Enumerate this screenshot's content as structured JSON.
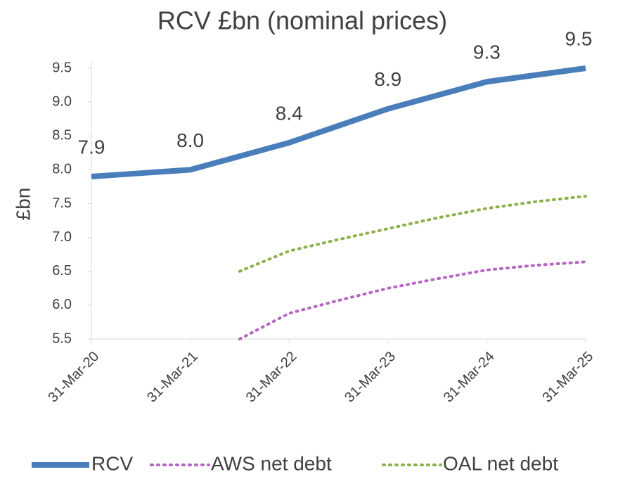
{
  "chart_data": {
    "type": "line",
    "title": "RCV £bn (nominal prices)",
    "y_label": "£bn",
    "categories": [
      "31-Mar-20",
      null,
      "31-Mar-21",
      null,
      "31-Mar-22",
      null,
      "31-Mar-23",
      null,
      "31-Mar-24",
      null,
      "31-Mar-25"
    ],
    "series": [
      {
        "name": "RCV",
        "color": "#4a7ebb",
        "style": "solid",
        "values": [
          7.9,
          7.95,
          8.0,
          8.2,
          8.4,
          8.65,
          8.9,
          9.1,
          9.3,
          9.4,
          9.5
        ],
        "value_labels": [
          "7.9",
          null,
          "8.0",
          null,
          "8.4",
          null,
          "8.9",
          null,
          "9.3",
          null,
          "9.5"
        ]
      },
      {
        "name": "AWS net debt",
        "color": "#b765c4",
        "style": "dotted",
        "values": [
          null,
          null,
          null,
          5.5,
          5.88,
          6.07,
          6.25,
          6.39,
          6.52,
          6.59,
          6.64
        ]
      },
      {
        "name": "OAL net debt",
        "color": "#8db04a",
        "style": "dotted",
        "values": [
          null,
          null,
          null,
          6.5,
          6.8,
          6.97,
          7.13,
          7.29,
          7.43,
          7.53,
          7.61
        ]
      }
    ],
    "ylim": [
      5.5,
      9.5
    ],
    "yticks": [
      5.5,
      {
        "value": 6,
        "label": "6.0"
      },
      6.5,
      {
        "value": 7,
        "label": "7.0"
      },
      7.5,
      {
        "value": 8,
        "label": "8.0"
      },
      8.5,
      {
        "value": 9,
        "label": "9.0"
      },
      9.5
    ],
    "grid": false,
    "legend": "bottom"
  }
}
